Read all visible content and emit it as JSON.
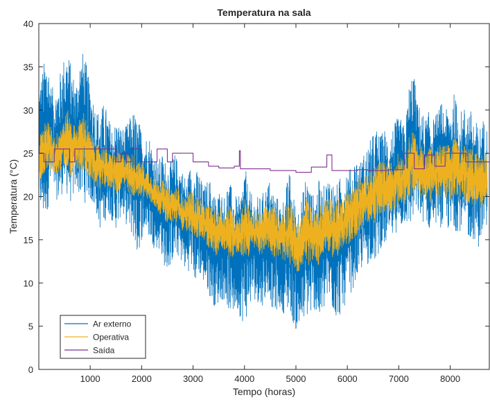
{
  "chart_data": {
    "type": "line",
    "title": "Temperatura na sala",
    "xlabel": "Tempo (horas)",
    "ylabel": "Temperatura (°C)",
    "xlim": [
      1,
      8760
    ],
    "ylim": [
      0,
      40
    ],
    "xticks": [
      1000,
      2000,
      3000,
      4000,
      5000,
      6000,
      7000,
      8000
    ],
    "yticks": [
      0,
      5,
      10,
      15,
      20,
      25,
      30,
      35,
      40
    ],
    "grid": false,
    "legend_position": "bottom-left",
    "series": [
      {
        "name": "Ar externo",
        "color": "#0072BD",
        "points_per_hour_step": 40,
        "x": [
          1,
          80,
          160,
          240,
          320,
          400,
          480,
          560,
          640,
          720,
          800,
          880,
          960,
          1040,
          1120,
          1200,
          1280,
          1360,
          1440,
          1520,
          1600,
          1680,
          1760,
          1840,
          1920,
          2000,
          2080,
          2160,
          2240,
          2320,
          2400,
          2480,
          2560,
          2640,
          2720,
          2800,
          2880,
          2960,
          3040,
          3120,
          3200,
          3280,
          3360,
          3440,
          3520,
          3600,
          3680,
          3760,
          3840,
          3920,
          4000,
          4080,
          4160,
          4240,
          4320,
          4400,
          4480,
          4560,
          4640,
          4720,
          4800,
          4880,
          4960,
          5040,
          5120,
          5200,
          5280,
          5360,
          5440,
          5520,
          5600,
          5680,
          5760,
          5840,
          5920,
          6000,
          6080,
          6160,
          6240,
          6320,
          6400,
          6480,
          6560,
          6640,
          6720,
          6800,
          6880,
          6960,
          7040,
          7120,
          7200,
          7280,
          7360,
          7440,
          7520,
          7600,
          7680,
          7760,
          7840,
          7920,
          8000,
          8080,
          8160,
          8240,
          8320,
          8400,
          8480,
          8560,
          8640,
          8720
        ],
        "y_min": [
          19,
          17,
          18,
          21,
          20,
          19,
          21,
          20,
          19,
          21,
          20,
          19,
          20,
          19,
          18,
          16,
          17,
          18,
          17,
          16,
          18,
          17,
          16,
          15,
          13,
          15,
          16,
          15,
          14,
          14,
          13,
          11,
          12,
          13,
          13,
          12,
          11,
          12,
          10,
          11,
          10,
          9,
          8,
          7,
          8,
          8,
          7,
          6,
          7,
          6,
          5,
          7,
          8,
          8,
          7,
          8,
          9,
          6,
          7,
          7,
          6,
          7,
          5,
          4,
          5,
          6,
          6,
          7,
          5,
          6,
          8,
          7,
          6,
          6,
          7,
          8,
          9,
          10,
          11,
          12,
          12,
          13,
          12,
          14,
          14,
          15,
          15,
          16,
          16,
          17,
          16,
          17,
          18,
          17,
          17,
          16,
          17,
          17,
          16,
          17,
          15,
          16,
          16,
          16,
          15,
          15,
          15,
          14,
          16,
          16
        ],
        "y_max": [
          33,
          35,
          37,
          33,
          32,
          34,
          36,
          37,
          35,
          33,
          36,
          37,
          34,
          32,
          30,
          30,
          31,
          29,
          28,
          29,
          28,
          28,
          29,
          30,
          29,
          28,
          27,
          27,
          25,
          24,
          25,
          24,
          24,
          25,
          24,
          23,
          22,
          24,
          23,
          23,
          21,
          22,
          22,
          20,
          21,
          20,
          22,
          21,
          20,
          20,
          24,
          21,
          20,
          20,
          20,
          21,
          22,
          21,
          20,
          19,
          21,
          23,
          20,
          19,
          20,
          23,
          21,
          20,
          22,
          21,
          22,
          23,
          21,
          22,
          23,
          24,
          23,
          25,
          24,
          25,
          26,
          27,
          28,
          27,
          28,
          27,
          28,
          29,
          29,
          28,
          33,
          35,
          31,
          30,
          29,
          30,
          29,
          30,
          31,
          30,
          31,
          32,
          30,
          30,
          31,
          30,
          29,
          28,
          29,
          28
        ]
      },
      {
        "name": "Operativa",
        "color": "#EDB120",
        "x": [
          1,
          80,
          160,
          240,
          320,
          400,
          480,
          560,
          640,
          720,
          800,
          880,
          960,
          1040,
          1120,
          1200,
          1280,
          1360,
          1440,
          1520,
          1600,
          1680,
          1760,
          1840,
          1920,
          2000,
          2080,
          2160,
          2240,
          2320,
          2400,
          2480,
          2560,
          2640,
          2720,
          2800,
          2880,
          2960,
          3040,
          3120,
          3200,
          3280,
          3360,
          3440,
          3520,
          3600,
          3680,
          3760,
          3840,
          3920,
          4000,
          4080,
          4160,
          4240,
          4320,
          4400,
          4480,
          4560,
          4640,
          4720,
          4800,
          4880,
          4960,
          5040,
          5120,
          5200,
          5280,
          5360,
          5440,
          5520,
          5600,
          5680,
          5760,
          5840,
          5920,
          6000,
          6080,
          6160,
          6240,
          6320,
          6400,
          6480,
          6560,
          6640,
          6720,
          6800,
          6880,
          6960,
          7040,
          7120,
          7200,
          7280,
          7360,
          7440,
          7520,
          7600,
          7680,
          7760,
          7840,
          7920,
          8000,
          8080,
          8160,
          8240,
          8320,
          8400,
          8480,
          8560,
          8640,
          8720
        ],
        "y_min": [
          22,
          22,
          23,
          23,
          22,
          23,
          23,
          23,
          22,
          23,
          23,
          23,
          22,
          22,
          21,
          21,
          21,
          21,
          21,
          20,
          21,
          21,
          20,
          20,
          20,
          20,
          20,
          19,
          19,
          18,
          18,
          17,
          17,
          17,
          17,
          16,
          16,
          16,
          15,
          15,
          15,
          14,
          14,
          13,
          14,
          14,
          13,
          13,
          13,
          13,
          13,
          13,
          14,
          14,
          13,
          14,
          14,
          13,
          13,
          13,
          12,
          12,
          12,
          11,
          12,
          12,
          12,
          13,
          12,
          13,
          14,
          13,
          13,
          13,
          14,
          14,
          15,
          15,
          16,
          16,
          17,
          17,
          17,
          18,
          18,
          18,
          18,
          19,
          19,
          19,
          20,
          20,
          20,
          20,
          20,
          19,
          20,
          20,
          20,
          20,
          19,
          20,
          20,
          20,
          19,
          19,
          19,
          19,
          19,
          19
        ],
        "y_max": [
          27,
          28,
          29,
          28,
          27,
          28,
          29,
          30,
          29,
          28,
          29,
          30,
          28,
          27,
          26,
          26,
          26,
          25,
          25,
          25,
          25,
          25,
          25,
          25,
          24,
          24,
          23,
          23,
          22,
          22,
          22,
          21,
          21,
          21,
          21,
          20,
          20,
          21,
          20,
          20,
          19,
          19,
          19,
          18,
          19,
          18,
          19,
          19,
          18,
          18,
          20,
          19,
          18,
          18,
          18,
          19,
          19,
          19,
          18,
          18,
          19,
          20,
          18,
          17,
          18,
          20,
          19,
          18,
          19,
          19,
          20,
          20,
          19,
          20,
          20,
          21,
          21,
          22,
          22,
          22,
          23,
          23,
          24,
          24,
          24,
          24,
          24,
          25,
          25,
          25,
          27,
          28,
          26,
          26,
          25,
          26,
          25,
          26,
          26,
          26,
          26,
          27,
          26,
          26,
          26,
          26,
          25,
          25,
          25,
          25
        ]
      },
      {
        "name": "Saída",
        "color": "#7E2F8E",
        "x": [
          1,
          100,
          101,
          300,
          301,
          600,
          601,
          700,
          701,
          900,
          901,
          1500,
          1501,
          1600,
          1601,
          1700,
          1701,
          1800,
          1801,
          2000,
          2001,
          2300,
          2301,
          2500,
          2501,
          2600,
          2601,
          3000,
          3001,
          3300,
          3301,
          3500,
          3501,
          3800,
          3801,
          3900,
          3901,
          3920,
          3921,
          4500,
          4501,
          5000,
          5001,
          5300,
          5301,
          5600,
          5601,
          5700,
          5701,
          6200,
          6201,
          6400,
          6401,
          6800,
          6801,
          7100,
          7101,
          7300,
          7301,
          7500,
          7501,
          7700,
          7701,
          7900,
          7901,
          8300,
          8301,
          8760
        ],
        "y": [
          25.0,
          25.0,
          24.0,
          24.0,
          25.5,
          25.5,
          24.0,
          24.0,
          25.5,
          25.5,
          25.5,
          25.5,
          24.0,
          24.0,
          25.0,
          25.0,
          24.0,
          24.0,
          25.5,
          25.5,
          24.0,
          24.0,
          25.5,
          25.5,
          24.0,
          24.0,
          25.0,
          25.0,
          24.0,
          24.0,
          23.5,
          23.5,
          23.3,
          23.3,
          23.5,
          23.5,
          25.3,
          25.3,
          23.2,
          23.2,
          23.0,
          23.0,
          22.8,
          22.8,
          23.4,
          23.4,
          24.8,
          24.8,
          23.0,
          23.0,
          23.1,
          23.1,
          23.0,
          23.0,
          23.1,
          23.1,
          25.0,
          25.0,
          23.2,
          23.2,
          24.8,
          24.8,
          23.5,
          23.5,
          25.0,
          25.0,
          24.0,
          24.0
        ]
      }
    ]
  }
}
